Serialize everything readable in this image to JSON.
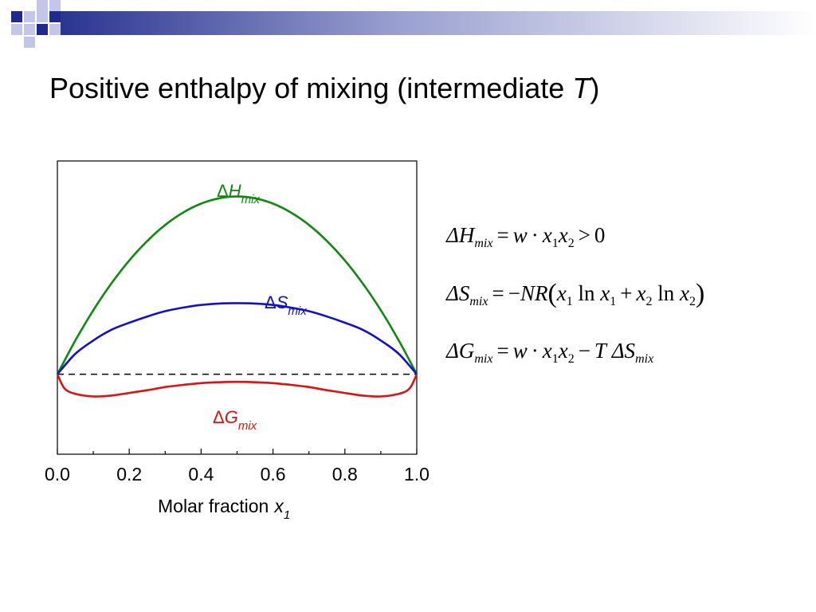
{
  "slide": {
    "title_main": "Positive enthalpy of mixing (intermediate ",
    "title_var": "T",
    "title_end": ")"
  },
  "colors": {
    "accent_dark": "#1f2a8a",
    "accent_light": "#c3c6e6",
    "H": "#118811",
    "S": "#1111cc",
    "G": "#dd1111"
  },
  "chart_data": {
    "type": "line",
    "xlabel": "Molar fraction",
    "xlabel_var": "x",
    "xlabel_sub": "1",
    "xlim": [
      0,
      1
    ],
    "ylim": [
      -0.45,
      1.2
    ],
    "xticks": [
      "0.0",
      "0.2",
      "0.4",
      "0.6",
      "0.8",
      "1.0"
    ],
    "xtick_values": [
      0,
      0.2,
      0.4,
      0.6,
      0.8,
      1.0
    ],
    "baseline": 0,
    "series": [
      {
        "name": "ΔH_mix",
        "color": "#118811",
        "x": [
          0,
          0.05,
          0.1,
          0.15,
          0.2,
          0.25,
          0.3,
          0.35,
          0.4,
          0.45,
          0.5,
          0.55,
          0.6,
          0.65,
          0.7,
          0.75,
          0.8,
          0.85,
          0.9,
          0.95,
          1
        ],
        "y": [
          0,
          0.19,
          0.36,
          0.51,
          0.64,
          0.75,
          0.84,
          0.91,
          0.96,
          0.99,
          1.0,
          0.99,
          0.96,
          0.91,
          0.84,
          0.75,
          0.64,
          0.51,
          0.36,
          0.19,
          0
        ]
      },
      {
        "name": "ΔS_mix",
        "color": "#1111cc",
        "x": [
          0,
          0.05,
          0.1,
          0.15,
          0.2,
          0.25,
          0.3,
          0.35,
          0.4,
          0.45,
          0.5,
          0.55,
          0.6,
          0.65,
          0.7,
          0.75,
          0.8,
          0.85,
          0.9,
          0.95,
          1
        ],
        "y": [
          0,
          0.115,
          0.19,
          0.25,
          0.29,
          0.325,
          0.355,
          0.375,
          0.39,
          0.398,
          0.4,
          0.398,
          0.39,
          0.375,
          0.355,
          0.325,
          0.29,
          0.25,
          0.19,
          0.115,
          0
        ]
      },
      {
        "name": "ΔG_mix",
        "color": "#dd1111",
        "x": [
          0,
          0.02,
          0.05,
          0.1,
          0.15,
          0.2,
          0.25,
          0.3,
          0.35,
          0.4,
          0.45,
          0.5,
          0.55,
          0.6,
          0.65,
          0.7,
          0.75,
          0.8,
          0.85,
          0.9,
          0.95,
          0.98,
          1
        ],
        "y": [
          0,
          -0.08,
          -0.11,
          -0.125,
          -0.12,
          -0.105,
          -0.09,
          -0.072,
          -0.06,
          -0.05,
          -0.045,
          -0.043,
          -0.045,
          -0.05,
          -0.06,
          -0.072,
          -0.09,
          -0.105,
          -0.12,
          -0.125,
          -0.11,
          -0.08,
          0
        ]
      }
    ],
    "curve_labels": {
      "H": {
        "delta": "Δ",
        "var": "H",
        "sub": "mix"
      },
      "S": {
        "delta": "Δ",
        "var": "S",
        "sub": "mix"
      },
      "G": {
        "delta": "Δ",
        "var": "G",
        "sub": "mix"
      }
    }
  },
  "equations": {
    "eq1": {
      "lhs": "ΔH",
      "lhs_sub": "mix",
      "eq": "=",
      "w": "w",
      "dot": "·",
      "x1": "x",
      "s1": "1",
      "x2": "x",
      "s2": "2",
      "gt": ">",
      "zero": "0"
    },
    "eq2": {
      "lhs": "ΔS",
      "lhs_sub": "mix",
      "eq": "=",
      "minus": "−",
      "NR": "NR",
      "lp": "(",
      "x1": "x",
      "s1": "1",
      "ln1": "ln",
      "x1b": "x",
      "s1b": "1",
      "plus": "+",
      "x2": "x",
      "s2": "2",
      "ln2": "ln",
      "x2b": "x",
      "s2b": "2",
      "rp": ")"
    },
    "eq3": {
      "lhs": "ΔG",
      "lhs_sub": "mix",
      "eq": "=",
      "w": "w",
      "dot": "·",
      "x1": "x",
      "s1": "1",
      "x2": "x",
      "s2": "2",
      "minus": "−",
      "T": "T",
      "dS": "ΔS",
      "dS_sub": "mix"
    }
  }
}
